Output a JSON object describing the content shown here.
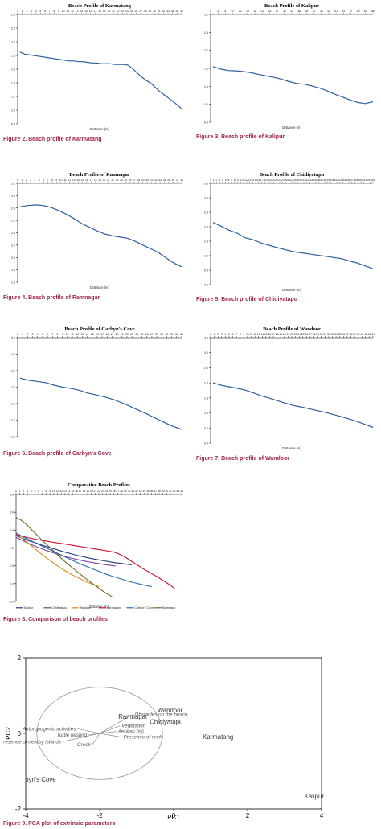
{
  "charts": [
    {
      "chart_data": {
        "type": "line",
        "title": "Beach Profile of Karmatang",
        "xlabel": "Distance (m)",
        "ylabel": "",
        "xticks": [
          "0",
          "1",
          "2",
          "3",
          "4",
          "5",
          "6",
          "7",
          "8",
          "9",
          "10",
          "11",
          "12",
          "13",
          "14",
          "15",
          "16",
          "17",
          "18",
          "19",
          "20",
          "21",
          "22",
          "23",
          "24",
          "25",
          "26",
          "27",
          "28",
          "29",
          "30",
          "31",
          "32",
          "33",
          "34",
          "35",
          "36"
        ],
        "yticks": [
          "0.8",
          "1.0",
          "1.2",
          "1.4",
          "1.6",
          "1.8",
          "2.0",
          "2.2",
          "2.4"
        ],
        "ylim": [
          0.8,
          2.4
        ],
        "series": [
          {
            "values": [
              1.85,
              1.82,
              1.81,
              1.8,
              1.79,
              1.78,
              1.77,
              1.76,
              1.75,
              1.74,
              1.73,
              1.72,
              1.72,
              1.71,
              1.71,
              1.7,
              1.69,
              1.69,
              1.68,
              1.68,
              1.68,
              1.67,
              1.67,
              1.67,
              1.66,
              1.61,
              1.55,
              1.49,
              1.44,
              1.4,
              1.34,
              1.28,
              1.23,
              1.18,
              1.13,
              1.08,
              1.02
            ],
            "color": "#2e5d9a"
          }
        ]
      },
      "caption": "Figure 2. Beach profile of Karmatang"
    },
    {
      "chart_data": {
        "type": "line",
        "title": "Beach Profile of Kalipur",
        "xlabel": "Distance (m)",
        "ylabel": "",
        "xticks": [
          "0",
          "3",
          "6",
          "9",
          "12",
          "15",
          "18",
          "21",
          "24",
          "27",
          "30",
          "33",
          "36",
          "39",
          "42",
          "45",
          "48",
          "51",
          "54",
          "57",
          "60",
          "63",
          "66"
        ],
        "yticks": [
          "0.0",
          "0.5",
          "1.0",
          "1.5",
          "2.0",
          "2.5",
          "3.0"
        ],
        "ylim": [
          0,
          3
        ],
        "series": [
          {
            "values": [
              1.55,
              1.48,
              1.44,
              1.43,
              1.41,
              1.38,
              1.33,
              1.29,
              1.25,
              1.2,
              1.13,
              1.08,
              1.06,
              1.01,
              0.95,
              0.87,
              0.78,
              0.7,
              0.62,
              0.55,
              0.52,
              0.57
            ],
            "color": "#2e5d9a"
          }
        ]
      },
      "caption": "Figure 3. Beach profile of Kalipur"
    },
    {
      "chart_data": {
        "type": "line",
        "title": "Beach Profile of Ramnagar",
        "xlabel": "Distance (m)",
        "ylabel": "",
        "xticks": [
          "0",
          "1",
          "2",
          "3",
          "4",
          "5",
          "6",
          "7",
          "8",
          "9",
          "10",
          "11",
          "12",
          "13",
          "14",
          "15",
          "16",
          "17",
          "18",
          "19",
          "20",
          "21",
          "22",
          "23",
          "24",
          "25",
          "26",
          "27",
          "28",
          "29",
          "30",
          "31",
          "32",
          "33",
          "34",
          "35",
          "36",
          "37",
          "38"
        ],
        "yticks": [
          "1.6",
          "1.8",
          "2.0",
          "2.2",
          "2.4",
          "2.6",
          "2.8",
          "3.0",
          "3.2"
        ],
        "ylim": [
          1.6,
          3.2
        ],
        "series": [
          {
            "values": [
              2.82,
              2.84,
              2.85,
              2.84,
              2.81,
              2.76,
              2.7,
              2.63,
              2.55,
              2.49,
              2.43,
              2.38,
              2.35,
              2.33,
              2.31,
              2.26,
              2.2,
              2.14,
              2.08,
              1.99,
              1.91,
              1.85
            ],
            "color": "#2e5d9a"
          }
        ]
      },
      "caption": "Figure 4. Beach profile of Ramnagar"
    },
    {
      "chart_data": {
        "type": "line",
        "title": "Beach Profile of Chidiyatapu",
        "xlabel": "Distance (m)",
        "ylabel": "",
        "xticks": [
          "0",
          "1",
          "2",
          "3",
          "4",
          "5",
          "6",
          "7",
          "8",
          "9",
          "10",
          "11",
          "12",
          "13",
          "14",
          "15",
          "16",
          "17",
          "18",
          "19",
          "20",
          "21",
          "22",
          "23",
          "24",
          "25",
          "26",
          "27",
          "28",
          "29",
          "30",
          "31",
          "32",
          "33",
          "34",
          "35",
          "36",
          "37",
          "38",
          "39",
          "40",
          "41",
          "42",
          "43",
          "44",
          "45",
          "46",
          "47",
          "48",
          "49",
          "50",
          "51",
          "52",
          "53",
          "54"
        ],
        "yticks": [
          "0.0",
          "0.5",
          "1.0",
          "1.5",
          "2.0",
          "2.5",
          "3.0",
          "3.5"
        ],
        "ylim": [
          0,
          3.5
        ],
        "series": [
          {
            "values": [
              2.15,
              2.02,
              1.88,
              1.78,
              1.62,
              1.55,
              1.44,
              1.36,
              1.28,
              1.21,
              1.14,
              1.1,
              1.06,
              1.02,
              0.98,
              0.94,
              0.9,
              0.82,
              0.75,
              0.65,
              0.55
            ],
            "color": "#2e5d9a"
          }
        ]
      },
      "caption": "Figure 5. Beach profile of Chidiyatapu"
    },
    {
      "chart_data": {
        "type": "line",
        "title": "Beach Profile of Carbyn's Cove",
        "xlabel": "",
        "ylabel": "",
        "xticks": [
          "0",
          "1",
          "2",
          "3",
          "4",
          "5",
          "6",
          "7",
          "8",
          "9",
          "10",
          "11",
          "12",
          "13",
          "14",
          "15",
          "16",
          "17",
          "18",
          "19",
          "20",
          "21",
          "22",
          "23",
          "24",
          "25",
          "26",
          "27",
          "28",
          "29",
          "30",
          "31",
          "32",
          "33"
        ],
        "yticks": [
          "-1.0",
          "0.0",
          "1.0",
          "2.0",
          "3.0",
          "4.0",
          "5.0"
        ],
        "ylim": [
          -1,
          5
        ],
        "series": [
          {
            "values": [
              2.55,
              2.42,
              2.35,
              2.28,
              2.12,
              2.0,
              1.92,
              1.8,
              1.64,
              1.52,
              1.4,
              1.25,
              1.05,
              0.82,
              0.58,
              0.35,
              0.1,
              -0.15,
              -0.38,
              -0.56
            ],
            "color": "#2e5d9a"
          }
        ]
      },
      "caption": "Figure 6. Beach profile of Carbyn's Cove"
    },
    {
      "chart_data": {
        "type": "line",
        "title": "Beach Profile of Wandoor",
        "xlabel": "Distance (m)",
        "ylabel": "",
        "xticks": [
          "0",
          "1",
          "2",
          "3",
          "4",
          "5",
          "6",
          "7",
          "8",
          "9",
          "10",
          "11",
          "12",
          "13",
          "14",
          "15",
          "16",
          "17",
          "18",
          "19",
          "20",
          "21",
          "22",
          "23",
          "24",
          "25",
          "26",
          "27",
          "28",
          "29",
          "30",
          "31",
          "32",
          "33",
          "34",
          "35",
          "36",
          "37",
          "38",
          "39",
          "40",
          "41",
          "42",
          "43",
          "44"
        ],
        "yticks": [
          "0.0",
          "0.5",
          "1.0",
          "1.5",
          "2.0",
          "2.5",
          "3.0",
          "3.5"
        ],
        "ylim": [
          0,
          3.5
        ],
        "series": [
          {
            "values": [
              2.0,
              1.92,
              1.87,
              1.82,
              1.76,
              1.67,
              1.57,
              1.5,
              1.41,
              1.33,
              1.25,
              1.2,
              1.14,
              1.08,
              1.02,
              0.95,
              0.88,
              0.8,
              0.72,
              0.62,
              0.52
            ],
            "color": "#2e5d9a"
          }
        ]
      },
      "caption": "Figure 7. Beach profile of Wandoor"
    },
    {
      "chart_data": {
        "type": "line",
        "title": "Comparative Beach Profiles",
        "xlabel": "Distance (m)",
        "ylabel": "",
        "xticks": [
          "0",
          "1",
          "2",
          "3",
          "4",
          "5",
          "6",
          "7",
          "8",
          "9",
          "10",
          "11",
          "12",
          "13",
          "14",
          "15",
          "16",
          "17",
          "18",
          "19",
          "20",
          "21",
          "22",
          "23",
          "24",
          "25",
          "26",
          "27",
          "28",
          "29",
          "30",
          "31",
          "32",
          "33",
          "34",
          "35",
          "36",
          "37",
          "38",
          "39",
          "40",
          "41",
          "42",
          "43",
          "44"
        ],
        "yticks": [
          "-1.0",
          "0.0",
          "1.0",
          "2.0",
          "3.0",
          "4.0",
          "5.0"
        ],
        "ylim": [
          -1,
          5
        ],
        "legend_position": "bottom",
        "series": [
          {
            "name": "Kalipur",
            "color": "#1f3b7a",
            "values": [
              2.7,
              2.6,
              2.5,
              2.42,
              2.35,
              2.28,
              2.2,
              2.12,
              2.05,
              1.98,
              1.92,
              1.85,
              1.78,
              1.72,
              1.66,
              1.6,
              1.55,
              1.5,
              1.45,
              1.4,
              1.36,
              1.32,
              1.28,
              1.24,
              1.2,
              1.17,
              1.14,
              1.11,
              1.08,
              1.06
            ]
          },
          {
            "name": "Chidiyatapu",
            "color": "#7b3f98",
            "values": [
              2.6,
              2.48,
              2.36,
              2.25,
              2.14,
              2.04,
              1.95,
              1.86,
              1.78,
              1.7,
              1.62,
              1.55,
              1.48,
              1.42,
              1.36,
              1.31,
              1.26,
              1.21,
              1.17,
              1.13,
              1.09,
              1.05,
              1.02,
              0.99
            ]
          },
          {
            "name": "Wandoor",
            "color": "#e08a1e",
            "values": [
              2.8,
              2.62,
              2.42,
              2.22,
              2.02,
              1.82,
              1.63,
              1.44,
              1.26,
              1.08,
              0.92,
              0.76,
              0.62,
              0.48,
              0.36,
              0.24,
              0.12,
              0.02,
              -0.08,
              -0.16
            ]
          },
          {
            "name": "Karmatang",
            "color": "#c8102e",
            "values": [
              2.75,
              2.68,
              2.62,
              2.56,
              2.51,
              2.46,
              2.42,
              2.38,
              2.34,
              2.3,
              2.26,
              2.22,
              2.18,
              2.14,
              2.1,
              2.06,
              2.02,
              1.98,
              1.94,
              1.9,
              1.86,
              1.82,
              1.78,
              1.7,
              1.58,
              1.44,
              1.28,
              1.12,
              0.96,
              0.8,
              0.66,
              0.52,
              0.38,
              0.22,
              0.06,
              -0.1,
              -0.3
            ]
          },
          {
            "name": "Carbyn's Cove",
            "color": "#2b6cb0",
            "values": [
              2.85,
              2.7,
              2.56,
              2.44,
              2.32,
              2.2,
              2.08,
              1.96,
              1.84,
              1.72,
              1.6,
              1.48,
              1.36,
              1.24,
              1.12,
              1.02,
              0.92,
              0.82,
              0.72,
              0.62,
              0.52,
              0.44,
              0.36,
              0.28,
              0.2,
              0.12,
              0.06,
              0.0,
              -0.06,
              -0.12,
              -0.16
            ]
          },
          {
            "name": "Ramnagar",
            "color": "#6b6b2a",
            "values": [
              3.7,
              3.55,
              3.3,
              3.0,
              2.7,
              2.4,
              2.12,
              1.84,
              1.56,
              1.28,
              1.02,
              0.78,
              0.54,
              0.3,
              0.08,
              -0.14,
              -0.36,
              -0.56,
              -0.74
            ]
          }
        ]
      },
      "caption": "Figure 8. Comparison of beach profiles"
    },
    {
      "chart_data": {
        "type": "scatter",
        "title": "",
        "xlabel": "PC1",
        "ylabel": "PC2",
        "xlim": [
          -4,
          4
        ],
        "ylim": [
          -2,
          2
        ],
        "xticks": [
          "-4",
          "-2",
          "0",
          "2",
          "4"
        ],
        "yticks": [
          "-2",
          "0",
          "2"
        ],
        "points": [
          {
            "label": "Wandoor",
            "x": -0.1,
            "y": 0.55
          },
          {
            "label": "Ramnagar",
            "x": -1.1,
            "y": 0.38
          },
          {
            "label": "Chidiyatapu",
            "x": -0.2,
            "y": 0.24
          },
          {
            "label": "Karmatang",
            "x": 1.2,
            "y": -0.15
          },
          {
            "label": "Kalipur",
            "x": 3.8,
            "y": -1.72
          },
          {
            "label": "byn's Cove",
            "x": -3.6,
            "y": -1.28
          }
        ],
        "loadings": [
          {
            "label": "Obstacles on the beach",
            "x": 0.9,
            "y": 0.5
          },
          {
            "label": "Vegetation",
            "x": 0.55,
            "y": 0.2
          },
          {
            "label": "Aeolian (m)",
            "x": 0.45,
            "y": 0.05
          },
          {
            "label": "Presence of reefs",
            "x": 0.6,
            "y": -0.1
          },
          {
            "label": "Anthropogenic activities",
            "x": -0.6,
            "y": 0.12
          },
          {
            "label": "Turtle nesting",
            "x": -0.3,
            "y": -0.04
          },
          {
            "label": "Presence of nearby islands",
            "x": -1.0,
            "y": -0.22
          },
          {
            "label": "Creek",
            "x": -0.2,
            "y": -0.3
          }
        ]
      },
      "caption": "Figure 9. PCA plot of extrinsic parameters"
    }
  ]
}
